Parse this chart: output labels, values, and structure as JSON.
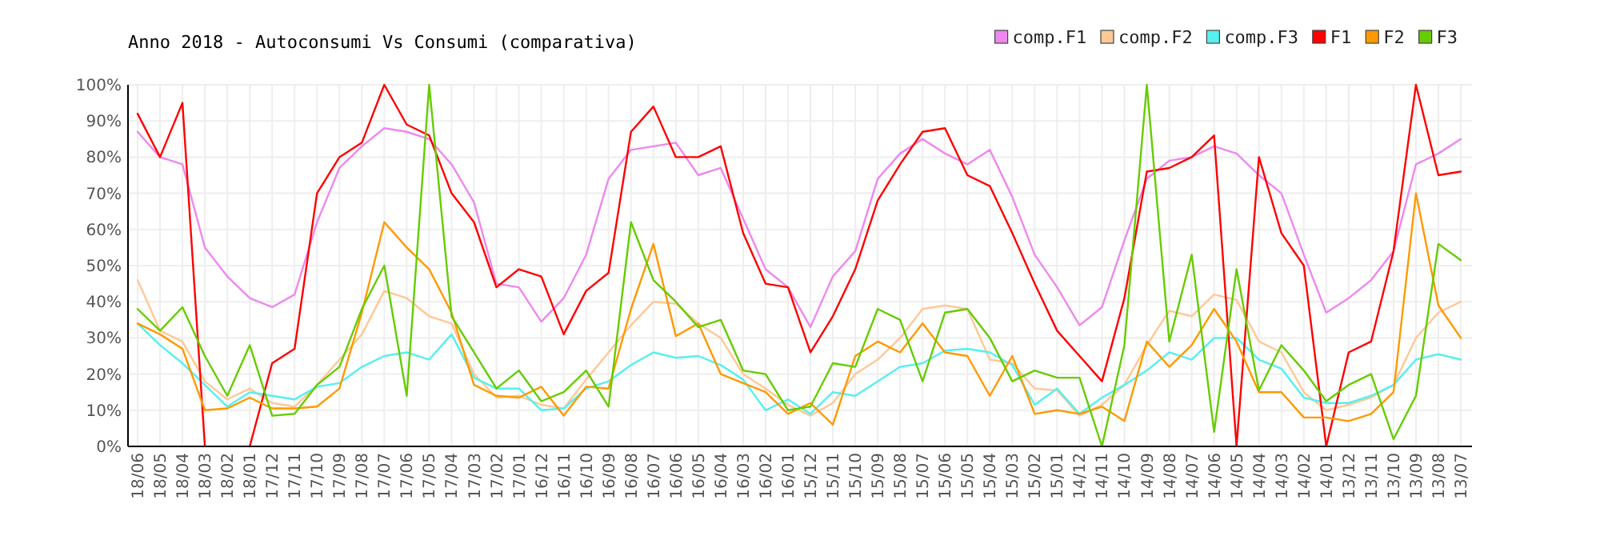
{
  "chart_data": {
    "type": "line",
    "title": "Anno 2018 - Autoconsumi Vs Consumi (comparativa)",
    "categories": [
      "18/06",
      "18/05",
      "18/04",
      "18/03",
      "18/02",
      "18/01",
      "17/12",
      "17/11",
      "17/10",
      "17/09",
      "17/08",
      "17/07",
      "17/06",
      "17/05",
      "17/04",
      "17/03",
      "17/02",
      "17/01",
      "16/12",
      "16/11",
      "16/10",
      "16/09",
      "16/08",
      "16/07",
      "16/06",
      "16/05",
      "16/04",
      "16/03",
      "16/02",
      "16/01",
      "15/12",
      "15/11",
      "15/10",
      "15/09",
      "15/08",
      "15/07",
      "15/06",
      "15/05",
      "15/04",
      "15/03",
      "15/02",
      "15/01",
      "14/12",
      "14/11",
      "14/10",
      "14/09",
      "14/08",
      "14/07",
      "14/06",
      "14/05",
      "14/04",
      "14/03",
      "14/02",
      "14/01",
      "13/12",
      "13/11",
      "13/10",
      "13/09",
      "13/08",
      "13/07"
    ],
    "series": [
      {
        "name": "comp.F1",
        "color": "#ee88ee",
        "values": [
          87,
          80,
          78,
          55,
          47,
          41,
          38.5,
          42,
          62,
          77,
          83,
          88,
          87,
          85,
          78,
          67.5,
          45,
          44,
          34.5,
          41,
          53,
          74,
          82,
          83,
          84,
          75,
          77,
          63,
          49,
          44,
          33,
          47,
          54,
          74,
          81,
          85,
          81,
          78,
          82,
          69,
          53,
          44,
          33.5,
          38.5,
          57,
          74,
          79,
          80,
          83,
          81,
          75,
          70,
          53,
          37,
          41,
          46,
          54,
          78,
          81,
          85
        ]
      },
      {
        "name": "comp.F2",
        "color": "#ffc896",
        "values": [
          46,
          32,
          29,
          18,
          13,
          16,
          12,
          11,
          17,
          24,
          31,
          43,
          41,
          36,
          34,
          20,
          13.5,
          14,
          11.5,
          10.5,
          18.5,
          26,
          33.5,
          40,
          39.5,
          34,
          30,
          20,
          16,
          11.5,
          8.5,
          12,
          20,
          24,
          30,
          38,
          39,
          38,
          24,
          23,
          16,
          15.5,
          8.5,
          11.5,
          17,
          28,
          37.5,
          36,
          42,
          40.5,
          29,
          26,
          15,
          10,
          11.5,
          13.5,
          17,
          30,
          37,
          40
        ]
      },
      {
        "name": "comp.F3",
        "color": "#55f0f0",
        "values": [
          34,
          28,
          23,
          17,
          11,
          15,
          14,
          13,
          16.5,
          17.5,
          22,
          25,
          26,
          24,
          31,
          19,
          16,
          16,
          10,
          10.5,
          16,
          18,
          22.5,
          26,
          24.5,
          25,
          22.5,
          18.5,
          10,
          13,
          9,
          15,
          14,
          18,
          22,
          23,
          26.5,
          27,
          26,
          22.5,
          11.5,
          16,
          9,
          13.5,
          17,
          21,
          26,
          24,
          30,
          30,
          24,
          21.5,
          13.5,
          12,
          12,
          14,
          17,
          24,
          25.5,
          24
        ]
      },
      {
        "name": "F1",
        "color": "#ff0000",
        "values": [
          92,
          80,
          95,
          0,
          null,
          0,
          23,
          27,
          70,
          80,
          84,
          100,
          89,
          86,
          70,
          62,
          44,
          49,
          47,
          31,
          43,
          48,
          87,
          94,
          80,
          80,
          83,
          59,
          45,
          44,
          26,
          36,
          49,
          68,
          78,
          87,
          88,
          75,
          72,
          59,
          45,
          32,
          25,
          18,
          41,
          76,
          77,
          80,
          86,
          0,
          80,
          59,
          50,
          0,
          26,
          29,
          54,
          100,
          75,
          76
        ]
      },
      {
        "name": "F2",
        "color": "#ff9900",
        "values": [
          34,
          31,
          27,
          10,
          10.5,
          13.5,
          10.5,
          10.5,
          11,
          16,
          37,
          62,
          55,
          49,
          37,
          17,
          14,
          13.5,
          16.5,
          8.5,
          16.5,
          16,
          38,
          56,
          30.5,
          34,
          20,
          17.5,
          15,
          9,
          12,
          6,
          25,
          29,
          26,
          34,
          26,
          25,
          14,
          25,
          9,
          10,
          9,
          11,
          7,
          29,
          22,
          28,
          38,
          29,
          15,
          15,
          8,
          8,
          7,
          9,
          15,
          70,
          39,
          30
        ]
      },
      {
        "name": "F3",
        "color": "#66cc00",
        "values": [
          38,
          32,
          38.5,
          25,
          14,
          28,
          8.5,
          9,
          17,
          22,
          38,
          50,
          14,
          100,
          36,
          26,
          16,
          21,
          12.5,
          15,
          21,
          11,
          62,
          46,
          40,
          33,
          35,
          21,
          20,
          10,
          11,
          23,
          22,
          38,
          35,
          18,
          37,
          38,
          30,
          18,
          21,
          19,
          19,
          0,
          28,
          100,
          29,
          53,
          4,
          49,
          15.5,
          28,
          21,
          12.5,
          17,
          20,
          2,
          14,
          56,
          51.5
        ]
      }
    ],
    "ylim": [
      0,
      100
    ],
    "yticks": [
      {
        "value": 0,
        "label": "0%"
      },
      {
        "value": 10,
        "label": "10%"
      },
      {
        "value": 20,
        "label": "20%"
      },
      {
        "value": 30,
        "label": "30%"
      },
      {
        "value": 40,
        "label": "40%"
      },
      {
        "value": 50,
        "label": "50%"
      },
      {
        "value": 60,
        "label": "60%"
      },
      {
        "value": 70,
        "label": "70%"
      },
      {
        "value": 80,
        "label": "80%"
      },
      {
        "value": 90,
        "label": "90%"
      },
      {
        "value": 100,
        "label": "100%"
      }
    ],
    "grid": true,
    "legend": "top right"
  }
}
